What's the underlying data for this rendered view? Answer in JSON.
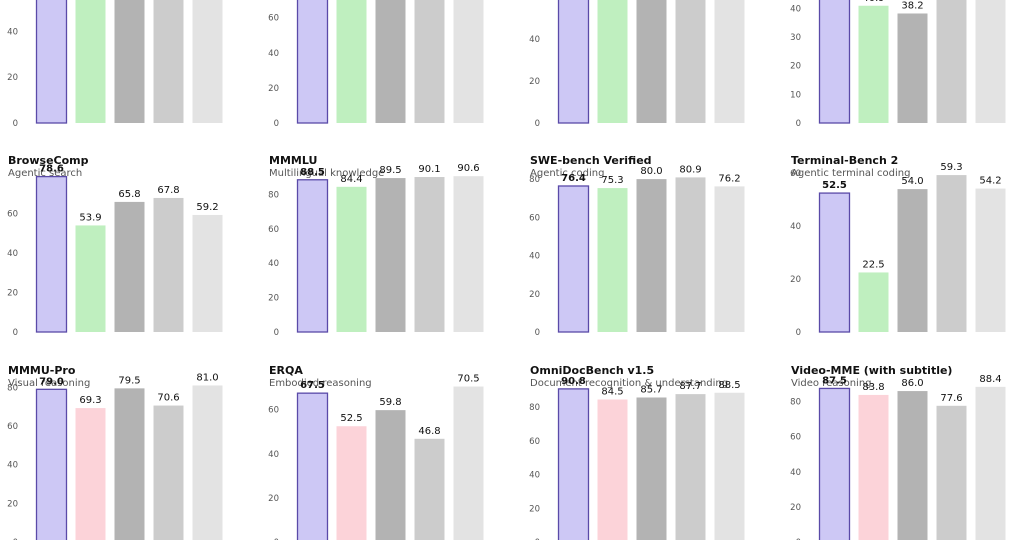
{
  "styles": {
    "fills": [
      "#cdc8f5",
      "#bfefbf",
      "#b3b3b3",
      "#cccccc",
      "#e3e3e3"
    ],
    "fills_alt": [
      "#cdc8f5",
      "#fcd3d9",
      "#b3b3b3",
      "#cccccc",
      "#e3e3e3"
    ],
    "highlight_stroke": "#5a4aa8",
    "tick_color": "#555555"
  },
  "chart_data": [
    {
      "type": "bar",
      "title": "",
      "subtitle": "",
      "values": [
        null,
        null,
        null,
        58.0,
        null
      ],
      "ylim": [
        0,
        75
      ],
      "yticks": [
        0,
        20,
        40,
        60
      ],
      "highlight": 0
    },
    {
      "type": "bar",
      "title": "",
      "subtitle": "",
      "values": [
        null,
        null,
        null,
        null,
        null
      ],
      "ylim": [
        0,
        98
      ],
      "yticks": [
        0,
        20,
        40,
        60,
        80
      ],
      "highlight": 0
    },
    {
      "type": "bar",
      "title": "",
      "subtitle": "",
      "values": [
        null,
        67.7,
        63.1,
        null,
        null
      ],
      "ylim": [
        0,
        82
      ],
      "yticks": [
        0,
        20,
        40,
        60
      ],
      "highlight": 0
    },
    {
      "type": "bar",
      "title": "",
      "subtitle": "",
      "values": [
        49.7,
        40.9,
        38.2,
        null,
        null
      ],
      "ylim": [
        0,
        60
      ],
      "yticks": [
        0,
        10,
        20,
        30,
        40,
        50
      ],
      "highlight": 0
    },
    {
      "type": "bar",
      "title": "BrowseComp",
      "subtitle": "Agentic search",
      "values": [
        78.6,
        53.9,
        65.8,
        67.8,
        59.2
      ],
      "ylim": [
        0,
        87
      ],
      "yticks": [
        0,
        20,
        40,
        60
      ],
      "highlight": 0
    },
    {
      "type": "bar",
      "title": "MMMLU",
      "subtitle": "Multilingual knowledge",
      "values": [
        88.5,
        84.4,
        89.5,
        90.1,
        90.6
      ],
      "ylim": [
        0,
        100
      ],
      "yticks": [
        0,
        20,
        40,
        60,
        80
      ],
      "highlight": 0
    },
    {
      "type": "bar",
      "title": "SWE-bench Verified",
      "subtitle": "Agentic coding",
      "values": [
        76.4,
        75.3,
        80.0,
        80.9,
        76.2
      ],
      "ylim": [
        0,
        90
      ],
      "yticks": [
        0,
        20,
        40,
        60,
        80
      ],
      "highlight": 0
    },
    {
      "type": "bar",
      "title": "Terminal-Bench 2",
      "subtitle": "Agentic terminal coding",
      "values": [
        52.5,
        22.5,
        54.0,
        59.3,
        54.2
      ],
      "ylim": [
        0,
        65
      ],
      "yticks": [
        0,
        20,
        40,
        60
      ],
      "highlight": 0
    },
    {
      "type": "bar",
      "title": "MMMU-Pro",
      "subtitle": "Visual reasoning",
      "values": [
        79.0,
        69.3,
        79.5,
        70.6,
        81.0
      ],
      "ylim": [
        0,
        89
      ],
      "yticks": [
        0,
        20,
        40,
        60,
        80
      ],
      "highlight": 0,
      "palette": "alt"
    },
    {
      "type": "bar",
      "title": "ERQA",
      "subtitle": "Embodied reasoning",
      "values": [
        67.5,
        52.5,
        59.8,
        46.8,
        70.5
      ],
      "ylim": [
        0,
        78
      ],
      "yticks": [
        0,
        20,
        40,
        60
      ],
      "highlight": 0,
      "palette": "alt"
    },
    {
      "type": "bar",
      "title": "OmniDocBench v1.5",
      "subtitle": "Document recognition & understanding",
      "values": [
        90.8,
        84.5,
        85.7,
        87.7,
        88.5
      ],
      "ylim": [
        0,
        102
      ],
      "yticks": [
        0,
        20,
        40,
        60,
        80
      ],
      "highlight": 0,
      "palette": "alt"
    },
    {
      "type": "bar",
      "title": "Video-MME (with subtitle)",
      "subtitle": "Video reasoning",
      "values": [
        87.5,
        83.8,
        86.0,
        77.6,
        88.4
      ],
      "ylim": [
        0,
        98
      ],
      "yticks": [
        0,
        20,
        40,
        60,
        80
      ],
      "highlight": 0,
      "palette": "alt"
    }
  ]
}
